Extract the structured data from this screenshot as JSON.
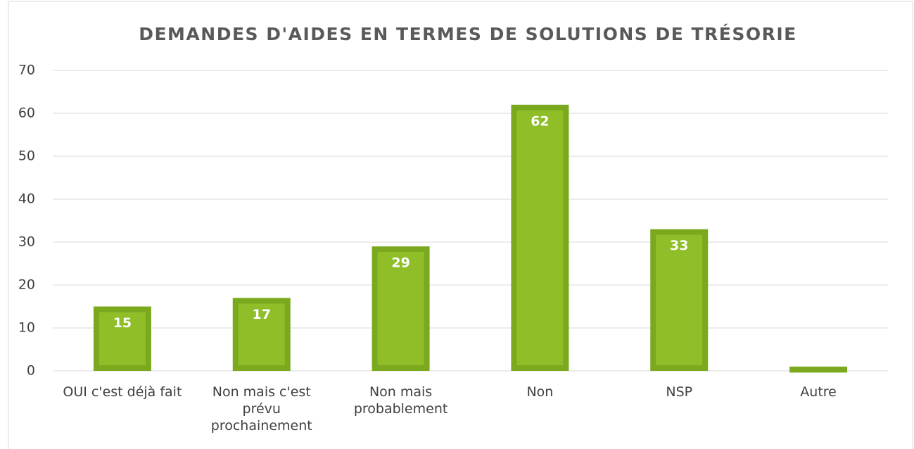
{
  "chart_data": {
    "type": "bar",
    "title": "DEMANDES D'AIDES EN TERMES DE SOLUTIONS DE TRÉSORIE",
    "categories": [
      "OUI c'est déjà fait",
      "Non mais c'est prévu prochainement",
      "Non mais probablement",
      "Non",
      "NSP",
      "Autre"
    ],
    "values": [
      15,
      17,
      29,
      62,
      33,
      1
    ],
    "value_labels": [
      "15",
      "17",
      "29",
      "62",
      "33",
      null
    ],
    "color": "#8fbe28",
    "edge_color": "#7aa91e",
    "ylim": [
      0,
      70
    ],
    "yticks": [
      0,
      10,
      20,
      30,
      40,
      50,
      60,
      70
    ],
    "grid": true
  }
}
